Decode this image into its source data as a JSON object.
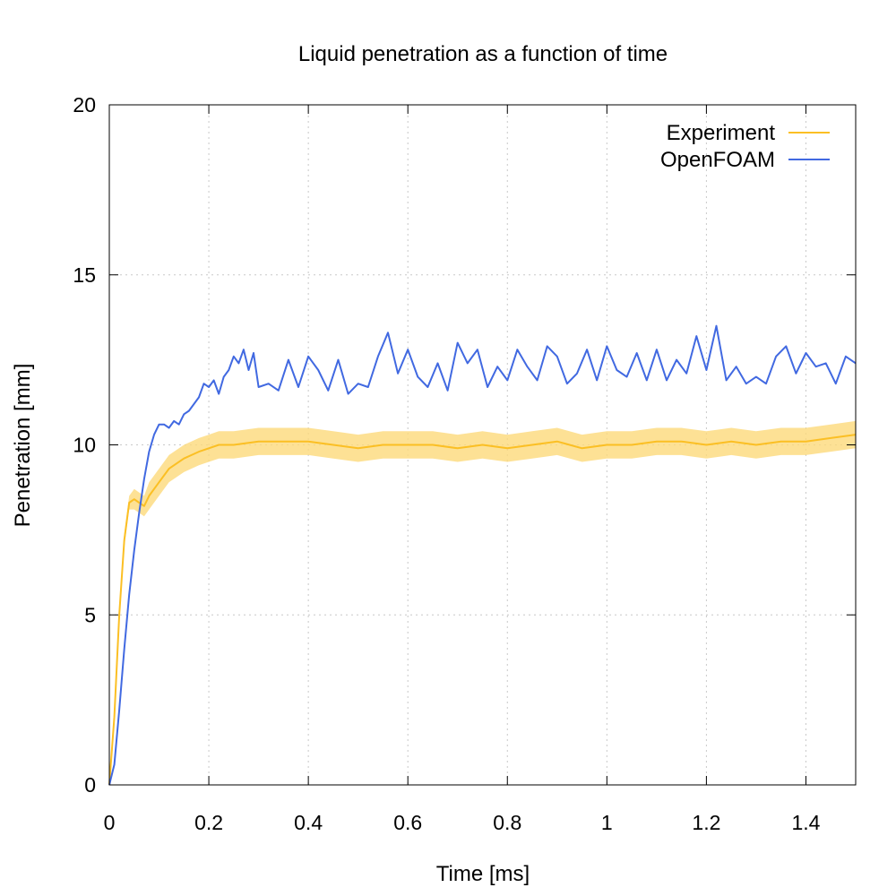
{
  "chart_data": {
    "type": "line",
    "title": "Liquid penetration as a function of time",
    "xlabel": "Time [ms]",
    "ylabel": "Penetration [mm]",
    "xlim": [
      0,
      1.5
    ],
    "ylim": [
      0,
      20
    ],
    "xticks": [
      0,
      0.2,
      0.4,
      0.6,
      0.8,
      1,
      1.2,
      1.4
    ],
    "xtick_labels": [
      "0",
      "0.2",
      "0.4",
      "0.6",
      "0.8",
      "1",
      "1.2",
      "1.4"
    ],
    "yticks": [
      0,
      5,
      10,
      15,
      20
    ],
    "ytick_labels": [
      "0",
      "5",
      "10",
      "15",
      "20"
    ],
    "grid": true,
    "legend_position": "top-right",
    "series": [
      {
        "name": "Experiment",
        "color": "#fbbf24",
        "band_color": "#fcd97a",
        "x": [
          0,
          0.01,
          0.02,
          0.03,
          0.04,
          0.05,
          0.06,
          0.07,
          0.08,
          0.1,
          0.12,
          0.15,
          0.18,
          0.2,
          0.22,
          0.25,
          0.3,
          0.35,
          0.4,
          0.45,
          0.5,
          0.55,
          0.6,
          0.65,
          0.7,
          0.75,
          0.8,
          0.85,
          0.9,
          0.95,
          1.0,
          1.05,
          1.1,
          1.15,
          1.2,
          1.25,
          1.3,
          1.35,
          1.4,
          1.45,
          1.5
        ],
        "values": [
          0,
          2.0,
          5.0,
          7.2,
          8.3,
          8.4,
          8.3,
          8.2,
          8.5,
          8.9,
          9.3,
          9.6,
          9.8,
          9.9,
          10.0,
          10.0,
          10.1,
          10.1,
          10.1,
          10.0,
          9.9,
          10.0,
          10.0,
          10.0,
          9.9,
          10.0,
          9.9,
          10.0,
          10.1,
          9.9,
          10.0,
          10.0,
          10.1,
          10.1,
          10.0,
          10.1,
          10.0,
          10.1,
          10.1,
          10.2,
          10.3
        ],
        "band_lower": [
          0,
          1.9,
          4.8,
          7.0,
          8.1,
          8.1,
          8.0,
          7.9,
          8.1,
          8.5,
          8.9,
          9.2,
          9.4,
          9.5,
          9.6,
          9.6,
          9.7,
          9.7,
          9.7,
          9.6,
          9.5,
          9.6,
          9.6,
          9.6,
          9.5,
          9.6,
          9.5,
          9.6,
          9.7,
          9.5,
          9.6,
          9.6,
          9.7,
          9.7,
          9.6,
          9.7,
          9.6,
          9.7,
          9.7,
          9.8,
          9.9
        ],
        "band_upper": [
          0,
          2.1,
          5.2,
          7.4,
          8.5,
          8.7,
          8.6,
          8.5,
          8.9,
          9.3,
          9.7,
          10.0,
          10.2,
          10.3,
          10.4,
          10.4,
          10.5,
          10.5,
          10.5,
          10.4,
          10.3,
          10.4,
          10.4,
          10.4,
          10.3,
          10.4,
          10.3,
          10.4,
          10.5,
          10.3,
          10.4,
          10.4,
          10.5,
          10.5,
          10.4,
          10.5,
          10.4,
          10.5,
          10.5,
          10.6,
          10.7
        ]
      },
      {
        "name": "OpenFOAM",
        "color": "#4169e1",
        "x": [
          0,
          0.01,
          0.02,
          0.03,
          0.04,
          0.05,
          0.06,
          0.07,
          0.08,
          0.09,
          0.1,
          0.11,
          0.12,
          0.13,
          0.14,
          0.15,
          0.16,
          0.17,
          0.18,
          0.19,
          0.2,
          0.21,
          0.22,
          0.23,
          0.24,
          0.25,
          0.26,
          0.27,
          0.28,
          0.29,
          0.3,
          0.32,
          0.34,
          0.36,
          0.38,
          0.4,
          0.42,
          0.44,
          0.46,
          0.48,
          0.5,
          0.52,
          0.54,
          0.56,
          0.58,
          0.6,
          0.62,
          0.64,
          0.66,
          0.68,
          0.7,
          0.72,
          0.74,
          0.76,
          0.78,
          0.8,
          0.82,
          0.84,
          0.86,
          0.88,
          0.9,
          0.92,
          0.94,
          0.96,
          0.98,
          1.0,
          1.02,
          1.04,
          1.06,
          1.08,
          1.1,
          1.12,
          1.14,
          1.16,
          1.18,
          1.2,
          1.22,
          1.24,
          1.26,
          1.28,
          1.3,
          1.32,
          1.34,
          1.36,
          1.38,
          1.4,
          1.42,
          1.44,
          1.46,
          1.48,
          1.5
        ],
        "values": [
          0,
          0.6,
          2.2,
          4.0,
          5.6,
          6.9,
          8.0,
          9.0,
          9.8,
          10.3,
          10.6,
          10.6,
          10.5,
          10.7,
          10.6,
          10.9,
          11.0,
          11.2,
          11.4,
          11.8,
          11.7,
          11.9,
          11.5,
          12.0,
          12.2,
          12.6,
          12.4,
          12.8,
          12.2,
          12.7,
          11.7,
          11.8,
          11.6,
          12.5,
          11.7,
          12.6,
          12.2,
          11.6,
          12.5,
          11.5,
          11.8,
          11.7,
          12.6,
          13.3,
          12.1,
          12.8,
          12.0,
          11.7,
          12.4,
          11.6,
          13.0,
          12.4,
          12.8,
          11.7,
          12.3,
          11.9,
          12.8,
          12.3,
          11.9,
          12.9,
          12.6,
          11.8,
          12.1,
          12.8,
          11.9,
          12.9,
          12.2,
          12.0,
          12.7,
          11.9,
          12.8,
          11.9,
          12.5,
          12.1,
          13.2,
          12.2,
          13.5,
          11.9,
          12.3,
          11.8,
          12.0,
          11.8,
          12.6,
          12.9,
          12.1,
          12.7,
          12.3,
          12.4,
          11.8,
          12.6,
          12.4
        ]
      }
    ]
  }
}
